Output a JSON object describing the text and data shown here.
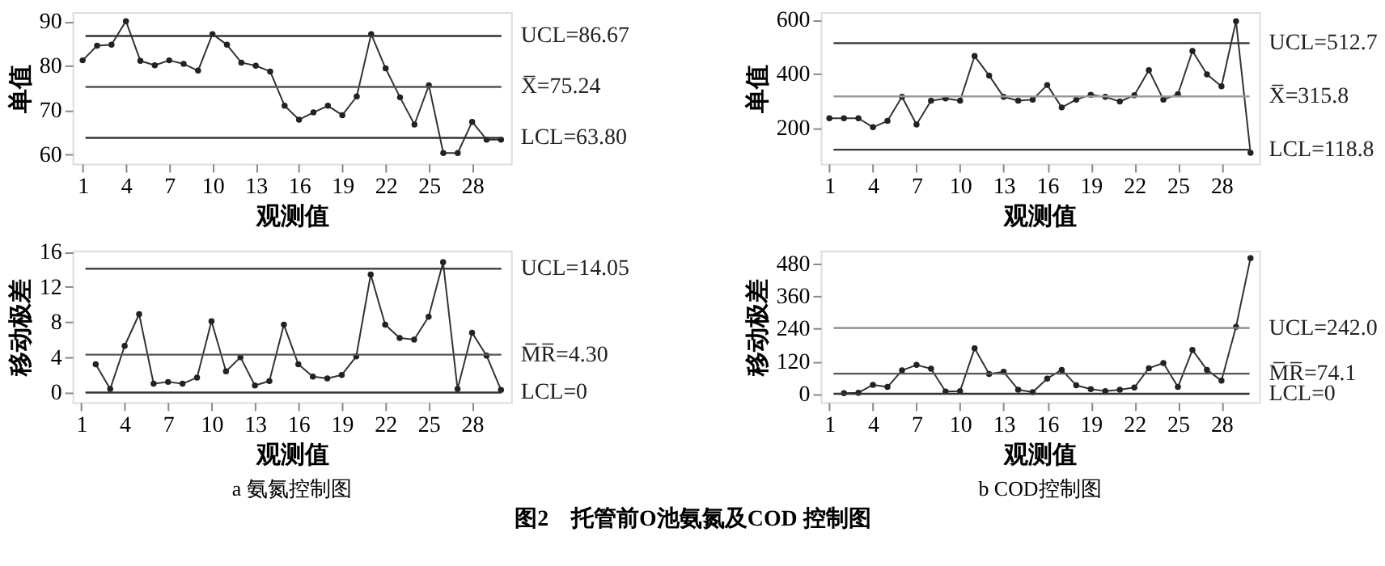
{
  "chart_data": [
    {
      "type": "line",
      "xlabel": "观测值",
      "ylabel": "单值",
      "x": [
        1,
        2,
        3,
        4,
        5,
        6,
        7,
        8,
        9,
        10,
        11,
        12,
        13,
        14,
        15,
        16,
        17,
        18,
        19,
        20,
        21,
        22,
        23,
        24,
        25,
        26,
        27,
        28,
        29,
        30
      ],
      "series": [
        {
          "color": "#333333",
          "values": [
            81.2,
            84.5,
            84.7,
            90.0,
            81.1,
            80.1,
            81.2,
            80.4,
            78.9,
            87.1,
            84.7,
            80.7,
            80.0,
            78.7,
            71.0,
            67.9,
            69.5,
            71.0,
            68.9,
            73.1,
            87.1,
            79.4,
            72.9,
            66.8,
            75.6,
            60.4,
            60.4,
            67.4,
            63.4,
            63.4
          ]
        }
      ],
      "xlim": [
        0.3,
        30.7
      ],
      "ylim": [
        58,
        92
      ],
      "xticks": [
        1,
        4,
        7,
        10,
        13,
        16,
        19,
        22,
        25,
        28
      ],
      "yticks": [
        60,
        70,
        80,
        90
      ],
      "ref_lines": [
        {
          "axis": "y",
          "value": 86.67,
          "label": "UCL=86.67",
          "color": "#333333"
        },
        {
          "axis": "y",
          "value": 75.24,
          "label": "X̅=75.24",
          "color": "#555555"
        },
        {
          "axis": "y",
          "value": 63.8,
          "label": "LCL=63.80",
          "color": "#333333"
        }
      ],
      "marker": "circle",
      "line_style": "solid",
      "grid": false
    },
    {
      "type": "line",
      "xlabel": "观测值",
      "ylabel": "单值",
      "x": [
        1,
        2,
        3,
        4,
        5,
        6,
        7,
        8,
        9,
        10,
        11,
        12,
        13,
        14,
        15,
        16,
        17,
        18,
        19,
        20,
        21,
        22,
        23,
        24,
        25,
        26,
        27,
        28,
        29,
        30
      ],
      "series": [
        {
          "color": "#333333",
          "values": [
            235,
            235,
            235,
            202,
            225,
            314,
            212,
            300,
            308,
            300,
            465,
            393,
            314,
            300,
            304,
            358,
            275,
            304,
            322,
            314,
            297,
            320,
            413,
            304,
            324,
            484,
            397,
            353,
            594,
            107
          ]
        }
      ],
      "xlim": [
        0.4,
        30.6
      ],
      "ylim": [
        67,
        627
      ],
      "xticks": [
        1,
        4,
        7,
        10,
        13,
        16,
        19,
        22,
        25,
        28
      ],
      "yticks": [
        200,
        400,
        600
      ],
      "ref_lines": [
        {
          "axis": "y",
          "value": 512.7,
          "label": "UCL=512.7",
          "color": "#333333"
        },
        {
          "axis": "y",
          "value": 315.8,
          "label": "X̅=315.8",
          "color": "#999999"
        },
        {
          "axis": "y",
          "value": 118.8,
          "label": "LCL=118.8",
          "color": "#333333"
        }
      ],
      "marker": "circle",
      "line_style": "solid",
      "grid": false
    },
    {
      "type": "line",
      "xlabel": "观测值",
      "ylabel": "移动极差",
      "x": [
        2,
        3,
        4,
        5,
        6,
        7,
        8,
        9,
        10,
        11,
        12,
        13,
        14,
        15,
        16,
        17,
        18,
        19,
        20,
        21,
        22,
        23,
        24,
        25,
        26,
        27,
        28,
        29,
        30
      ],
      "series": [
        {
          "color": "#333333",
          "values": [
            3.2,
            0.4,
            5.3,
            8.9,
            1.0,
            1.2,
            1.0,
            1.7,
            8.1,
            2.4,
            4.0,
            0.8,
            1.3,
            7.7,
            3.2,
            1.8,
            1.6,
            2.0,
            4.1,
            13.4,
            7.7,
            6.2,
            6.0,
            8.6,
            14.8,
            0.4,
            6.8,
            4.2,
            0.3
          ]
        }
      ],
      "xlim": [
        0.4,
        30.7
      ],
      "ylim": [
        -1.1,
        16.1
      ],
      "xticks": [
        1,
        4,
        7,
        10,
        13,
        16,
        19,
        22,
        25,
        28
      ],
      "yticks": [
        0,
        4,
        8,
        12,
        16
      ],
      "ref_lines": [
        {
          "axis": "y",
          "value": 14.05,
          "label": "UCL=14.05",
          "color": "#333333"
        },
        {
          "axis": "y",
          "value": 4.3,
          "label": "M̅R̅=4.30",
          "color": "#555555"
        },
        {
          "axis": "y",
          "value": 0,
          "label": "LCL=0",
          "color": "#333333"
        }
      ],
      "annotations": [
        "a  氨氮控制图",
        "图2　托管前O池氨氮及COD 控制图"
      ],
      "marker": "circle",
      "line_style": "solid",
      "grid": false
    },
    {
      "type": "line",
      "xlabel": "观测值",
      "ylabel": "移动极差",
      "x": [
        2,
        3,
        4,
        5,
        6,
        7,
        8,
        9,
        10,
        11,
        12,
        13,
        14,
        15,
        16,
        17,
        18,
        19,
        20,
        21,
        22,
        23,
        24,
        25,
        26,
        27,
        28,
        29,
        30
      ],
      "series": [
        {
          "color": "#333333",
          "values": [
            2,
            4,
            33,
            25,
            86,
            106,
            92,
            8,
            10,
            167,
            73,
            81,
            15,
            6,
            56,
            88,
            31,
            17,
            10,
            15,
            23,
            94,
            113,
            25,
            161,
            88,
            48,
            246,
            499
          ]
        }
      ],
      "xlim": [
        0.4,
        30.6
      ],
      "ylim": [
        -31,
        526
      ],
      "xticks": [
        1,
        4,
        7,
        10,
        13,
        16,
        19,
        22,
        25,
        28
      ],
      "yticks": [
        0,
        120,
        240,
        360,
        480
      ],
      "ref_lines": [
        {
          "axis": "y",
          "value": 242.0,
          "label": "UCL=242.0",
          "color": "#888888"
        },
        {
          "axis": "y",
          "value": 74.1,
          "label": "M̅R̅=74.1",
          "color": "#555555"
        },
        {
          "axis": "y",
          "value": 0,
          "label": "LCL=0",
          "color": "#333333"
        }
      ],
      "annotations": [
        "b  COD控制图"
      ],
      "marker": "circle",
      "line_style": "solid",
      "grid": false
    }
  ]
}
